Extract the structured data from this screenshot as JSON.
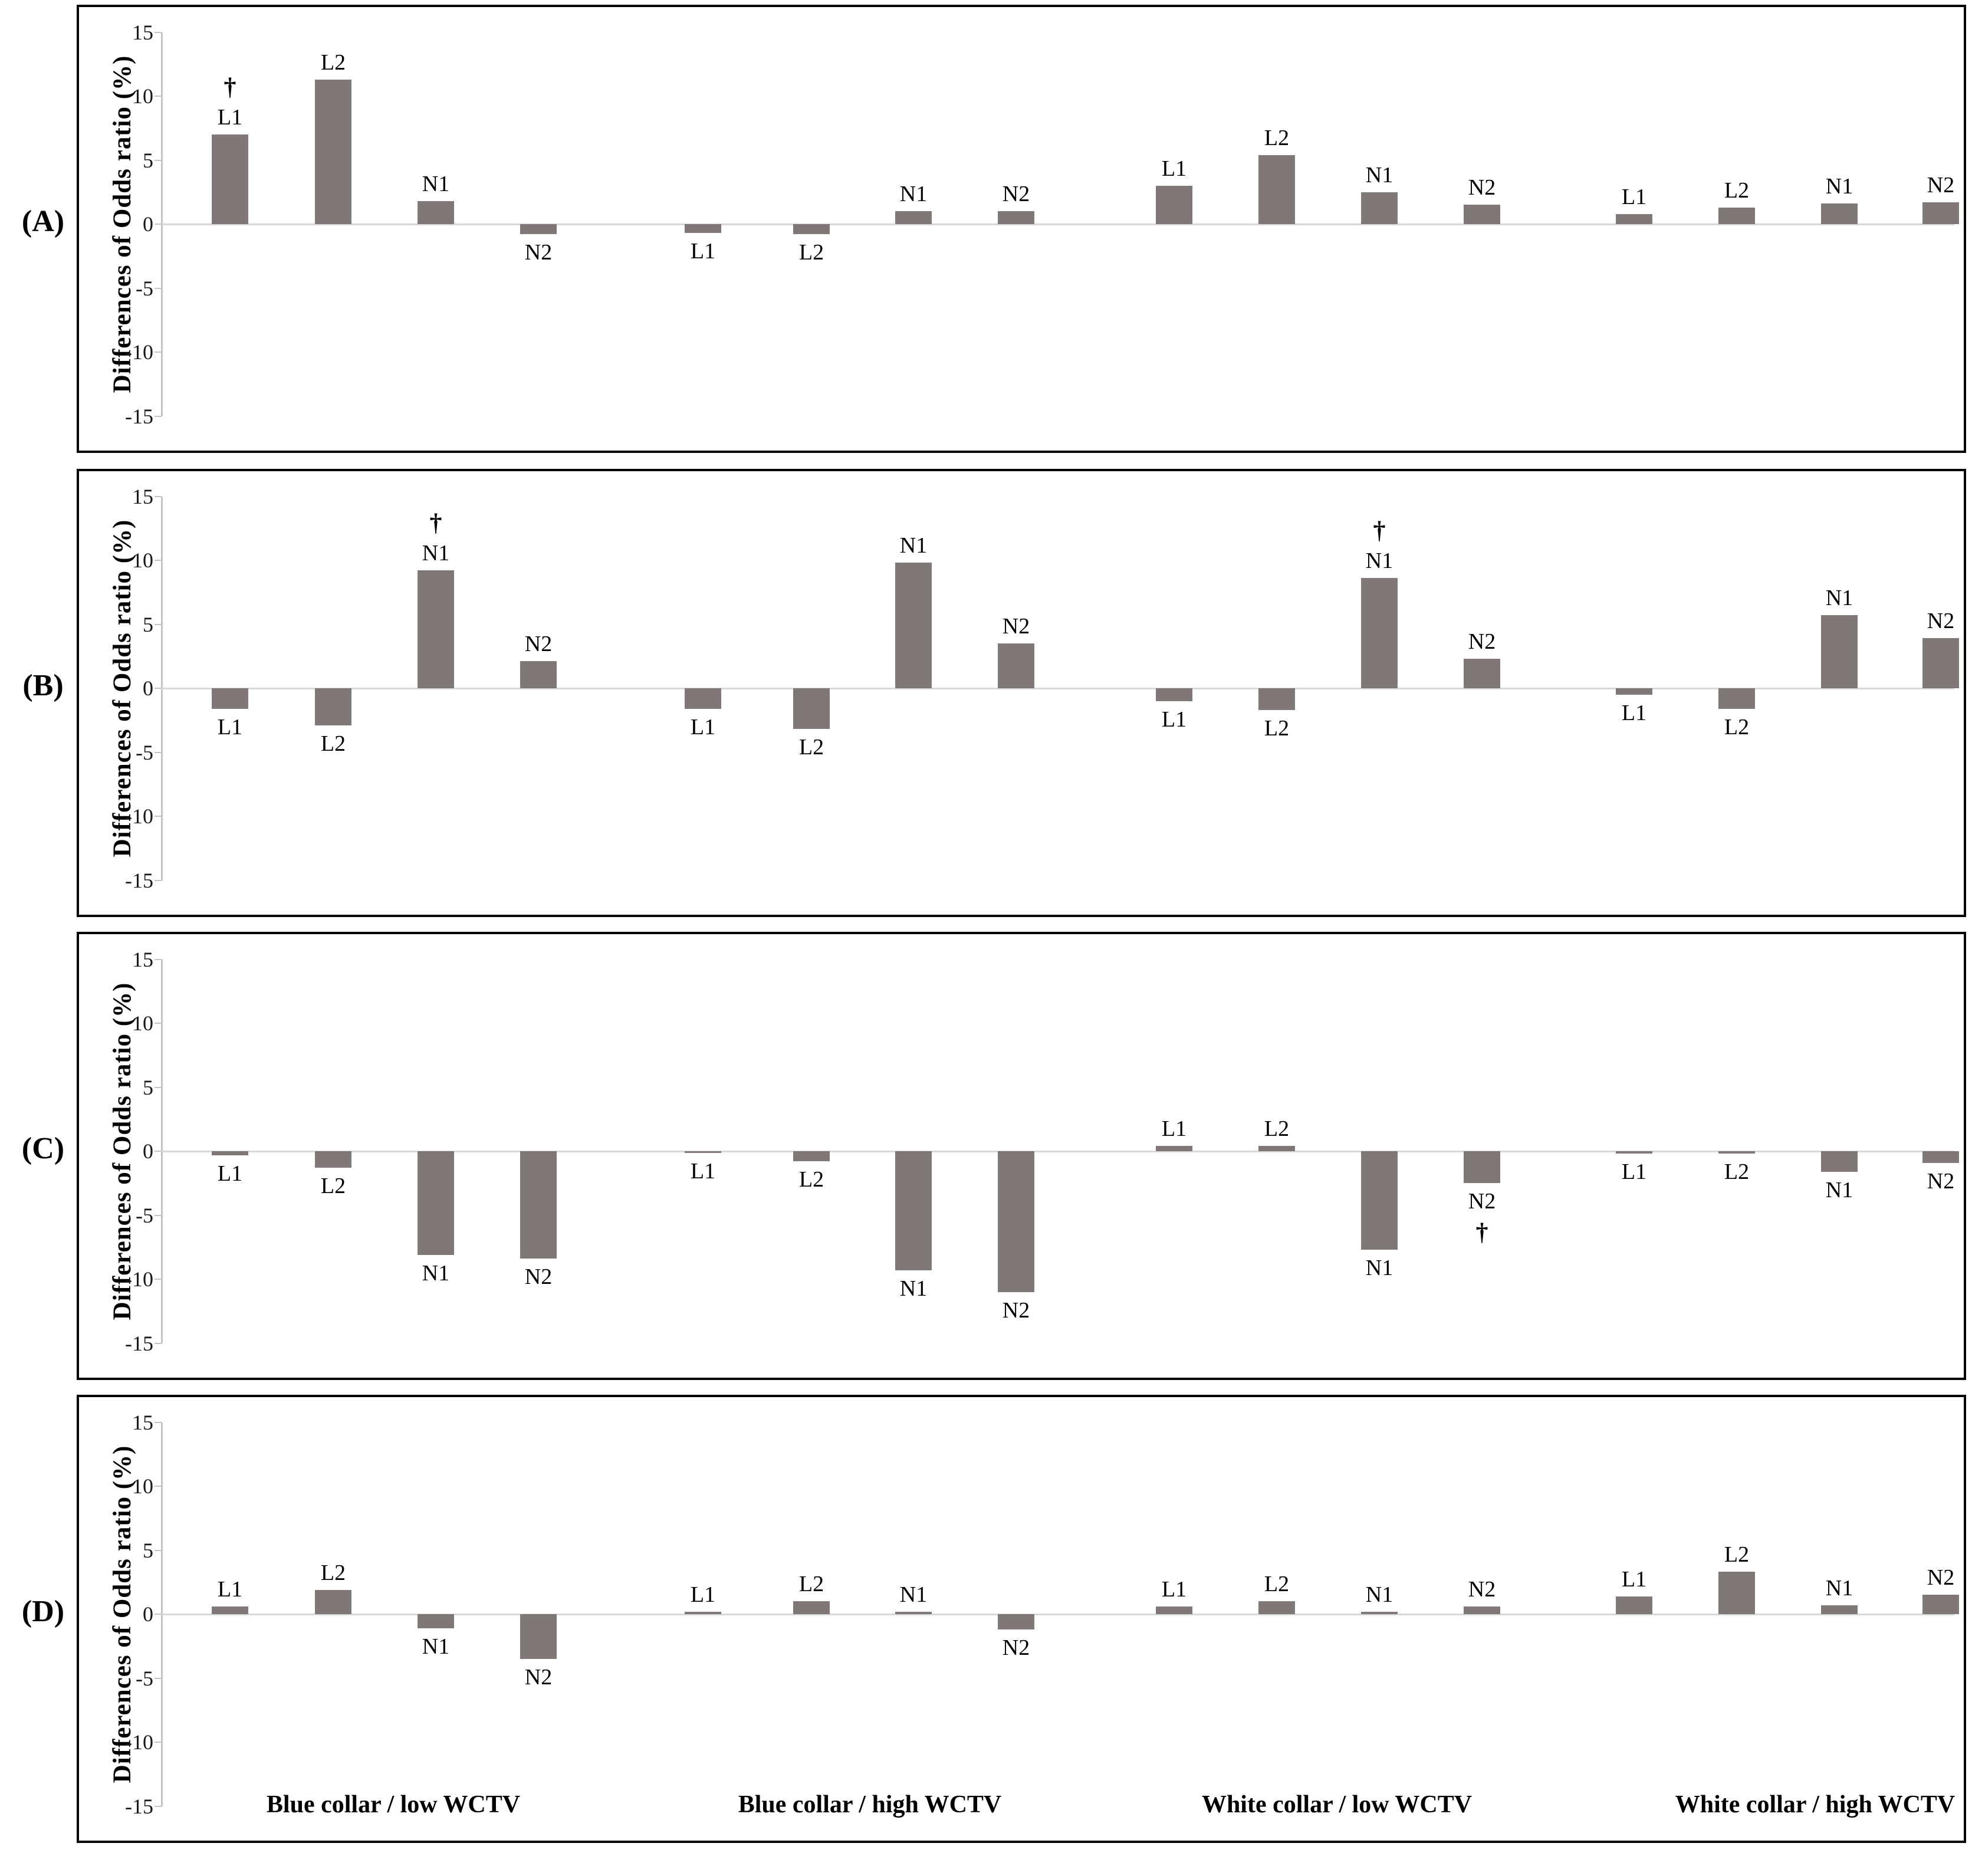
{
  "figure": {
    "ylabel": "Differences of Odds ratio (%)",
    "bar_series_labels": [
      "L1",
      "L2",
      "N1",
      "N2"
    ],
    "categories": [
      "Blue collar / low WCTV",
      "Blue collar / high WCTV",
      "White collar / low WCTV",
      "White collar / high WCTV"
    ],
    "dagger_symbol": "†",
    "colors": {
      "bar": "#807876",
      "axis_line": "#c6c4c4",
      "zero_line": "#d9d7d7",
      "border": "#000000",
      "text": "#000000"
    }
  },
  "chart_data": [
    {
      "type": "bar",
      "panel_label": "(A)",
      "ylabel": "Differences of Odds ratio (%)",
      "ylim": [
        -15,
        15
      ],
      "yticks": [
        15,
        10,
        5,
        0,
        -5,
        -10,
        -15
      ],
      "grid": false,
      "categories": [
        "Blue collar / low WCTV",
        "Blue collar / high WCTV",
        "White collar / low WCTV",
        "White collar / high WCTV"
      ],
      "series_labels": [
        "L1",
        "L2",
        "N1",
        "N2"
      ],
      "values": [
        [
          7.0,
          11.3,
          1.8,
          -0.8
        ],
        [
          -0.7,
          -0.8,
          1.0,
          1.0
        ],
        [
          3.0,
          5.4,
          2.5,
          1.5
        ],
        [
          0.8,
          1.3,
          1.6,
          1.7
        ]
      ],
      "dagger_marks": [
        [
          0,
          0
        ]
      ],
      "show_category_labels": false
    },
    {
      "type": "bar",
      "panel_label": "(B)",
      "ylabel": "Differences of Odds ratio (%)",
      "ylim": [
        -15,
        15
      ],
      "yticks": [
        15,
        10,
        5,
        0,
        -5,
        -10,
        -15
      ],
      "grid": false,
      "categories": [
        "Blue collar / low WCTV",
        "Blue collar / high WCTV",
        "White collar / low WCTV",
        "White collar / high WCTV"
      ],
      "series_labels": [
        "L1",
        "L2",
        "N1",
        "N2"
      ],
      "values": [
        [
          -1.6,
          -2.9,
          9.2,
          2.1
        ],
        [
          -1.6,
          -3.2,
          9.8,
          3.5
        ],
        [
          -1.0,
          -1.7,
          8.6,
          2.3
        ],
        [
          -0.5,
          -1.6,
          5.7,
          3.9
        ]
      ],
      "dagger_marks": [
        [
          0,
          2
        ],
        [
          2,
          2
        ]
      ],
      "show_category_labels": false
    },
    {
      "type": "bar",
      "panel_label": "(C)",
      "ylabel": "Differences of Odds ratio (%)",
      "ylim": [
        -15,
        15
      ],
      "yticks": [
        15,
        10,
        5,
        0,
        -5,
        -10,
        -15
      ],
      "grid": false,
      "categories": [
        "Blue collar / low WCTV",
        "Blue collar / high WCTV",
        "White collar / low WCTV",
        "White collar / high WCTV"
      ],
      "series_labels": [
        "L1",
        "L2",
        "N1",
        "N2"
      ],
      "values": [
        [
          -0.3,
          -1.3,
          -8.1,
          -8.4
        ],
        [
          -0.1,
          -0.8,
          -9.3,
          -11.0
        ],
        [
          0.4,
          0.4,
          -7.7,
          -2.5
        ],
        [
          -0.2,
          -0.2,
          -1.6,
          -0.9
        ]
      ],
      "dagger_marks": [
        [
          2,
          3
        ]
      ],
      "show_category_labels": false
    },
    {
      "type": "bar",
      "panel_label": "(D)",
      "ylabel": "Differences of Odds ratio (%)",
      "ylim": [
        -15,
        15
      ],
      "yticks": [
        15,
        10,
        5,
        0,
        -5,
        -10,
        -15
      ],
      "grid": false,
      "categories": [
        "Blue collar / low WCTV",
        "Blue collar / high WCTV",
        "White collar / low WCTV",
        "White collar / high WCTV"
      ],
      "series_labels": [
        "L1",
        "L2",
        "N1",
        "N2"
      ],
      "values": [
        [
          0.6,
          1.9,
          -1.1,
          -3.5
        ],
        [
          0.2,
          1.0,
          0.2,
          -1.2
        ],
        [
          0.6,
          1.0,
          0.2,
          0.6
        ],
        [
          1.4,
          3.3,
          0.7,
          1.5
        ]
      ],
      "dagger_marks": [],
      "show_category_labels": true
    }
  ]
}
